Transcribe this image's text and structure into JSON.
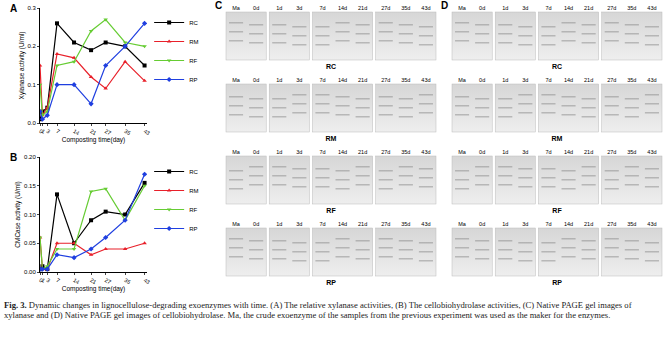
{
  "chart_data": [
    {
      "type": "line",
      "annotations": [
        "A"
      ],
      "x_label": "Composting time(day)",
      "y_label": "Xylanase activity (U/ml)",
      "x": [
        0,
        1,
        3,
        7,
        14,
        21,
        27,
        35,
        43
      ],
      "xlim": [
        0,
        44
      ],
      "xticks": [
        0,
        1,
        3,
        7,
        14,
        21,
        27,
        35,
        43
      ],
      "ylim": [
        0,
        0.3
      ],
      "yticks": [
        {
          "value": 0,
          "label": "0.0"
        },
        0.1,
        0.2,
        0.3
      ],
      "grid": false,
      "legend": "right",
      "series": [
        {
          "name": "RC",
          "color": "#000000",
          "marker": "square",
          "values": [
            0.01,
            0.03,
            0.04,
            0.26,
            0.21,
            0.19,
            0.21,
            0.2,
            0.15
          ]
        },
        {
          "name": "RM",
          "color": "#e8202a",
          "marker": "triangle-up",
          "values": [
            0.15,
            0.02,
            0.04,
            0.18,
            0.17,
            0.12,
            0.09,
            0.16,
            0.11
          ]
        },
        {
          "name": "RF",
          "color": "#66cc33",
          "marker": "triangle-down",
          "values": [
            0.1,
            0.02,
            0.03,
            0.15,
            0.16,
            0.24,
            0.27,
            0.21,
            0.2
          ]
        },
        {
          "name": "RP",
          "color": "#1f3fe0",
          "marker": "diamond",
          "values": [
            0.03,
            0.01,
            0.02,
            0.1,
            0.1,
            0.05,
            0.15,
            0.2,
            0.26
          ]
        }
      ]
    },
    {
      "type": "line",
      "annotations": [
        "B"
      ],
      "x_label": "Composting time(day)",
      "y_label": "CMCase activity (U/ml)",
      "x": [
        0,
        1,
        3,
        7,
        14,
        21,
        27,
        35,
        43
      ],
      "xlim": [
        0,
        44
      ],
      "xticks": [
        0,
        1,
        3,
        7,
        14,
        21,
        27,
        35,
        43
      ],
      "ylim": [
        0,
        0.2
      ],
      "yticks": [
        {
          "value": 0,
          "label": "0.00"
        },
        0.05,
        {
          "value": 0.1,
          "label": "0.10"
        },
        0.15,
        {
          "value": 0.2,
          "label": "0.20"
        }
      ],
      "grid": false,
      "legend": "right",
      "series": [
        {
          "name": "RC",
          "color": "#000000",
          "marker": "square",
          "values": [
            0.005,
            0.01,
            0.005,
            0.135,
            0.05,
            0.09,
            0.105,
            0.1,
            0.155
          ]
        },
        {
          "name": "RM",
          "color": "#e8202a",
          "marker": "triangle-up",
          "values": [
            0.06,
            0.005,
            0.005,
            0.05,
            0.05,
            0.03,
            0.04,
            0.04,
            0.05
          ]
        },
        {
          "name": "RF",
          "color": "#66cc33",
          "marker": "triangle-down",
          "values": [
            0.06,
            0.005,
            0.01,
            0.04,
            0.04,
            0.14,
            0.145,
            0.09,
            0.15
          ]
        },
        {
          "name": "RP",
          "color": "#1f3fe0",
          "marker": "diamond",
          "values": [
            0.005,
            0.005,
            0.005,
            0.03,
            0.025,
            0.04,
            0.06,
            0.09,
            0.17
          ]
        }
      ]
    }
  ],
  "gels": [
    {
      "label": "C",
      "panels": [
        "RC",
        "RM",
        "RF",
        "RP"
      ]
    },
    {
      "label": "D",
      "panels": [
        "RC",
        "RM",
        "RF",
        "RP"
      ]
    }
  ],
  "lane_groups": [
    [
      "Ma",
      "0d"
    ],
    [
      "1d",
      "3d"
    ],
    [
      "7d",
      "14d",
      "21d"
    ],
    [
      "27d",
      "35d",
      "43d"
    ]
  ],
  "caption": {
    "label": "Fig. 3.",
    "text": "Dynamic changes in lignocellulose-degrading exoenzymes with time. (A) The relative xylanase activities, (B) The cellobiohydrolase activities, (C) Native PAGE gel images of xylanase and (D) Native PAGE gel images of cellobiohydrolase. Ma, the crude exoenzyme of the samples from the previous experiment was used as the maker for the enzymes."
  }
}
